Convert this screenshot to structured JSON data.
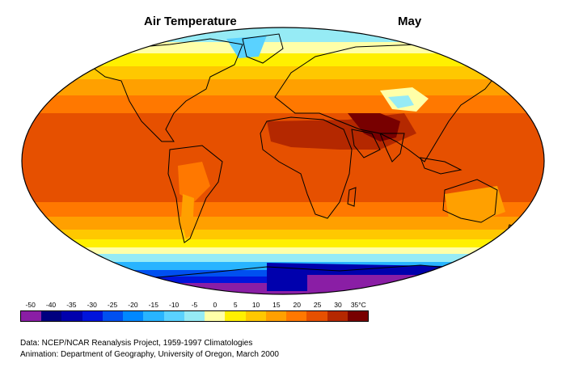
{
  "title": "Air Temperature",
  "month": "May",
  "legend": {
    "ticks": [
      "-50",
      "-40",
      "-35",
      "-30",
      "-25",
      "-20",
      "-15",
      "-10",
      "-5",
      "0",
      "5",
      "10",
      "15",
      "20",
      "25",
      "30",
      "35°C"
    ],
    "colors": [
      "#8a1ea5",
      "#00007f",
      "#0000ad",
      "#0014dc",
      "#0050f0",
      "#0088ff",
      "#28b4ff",
      "#5ad2ff",
      "#96ebf5",
      "#ffffa8",
      "#fff000",
      "#ffc800",
      "#ffa000",
      "#ff7800",
      "#e65000",
      "#b42800",
      "#780000"
    ]
  },
  "credits": {
    "data_line": "Data:  NCEP/NCAR Reanalysis Project, 1959-1997 Climatologies",
    "animation_line": "Animation:  Department of Geography, University of Oregon, March 2000"
  }
}
